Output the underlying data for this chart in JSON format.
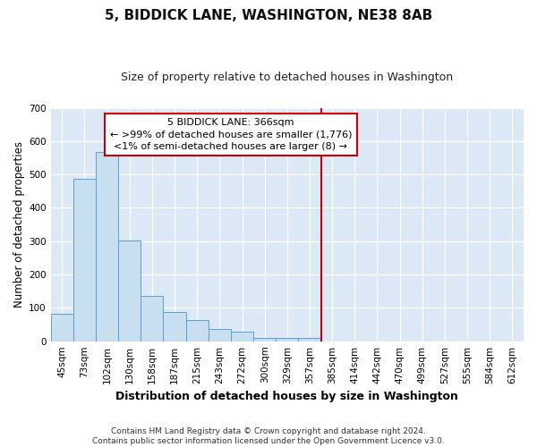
{
  "title": "5, BIDDICK LANE, WASHINGTON, NE38 8AB",
  "subtitle": "Size of property relative to detached houses in Washington",
  "xlabel": "Distribution of detached houses by size in Washington",
  "ylabel": "Number of detached properties",
  "footer_line1": "Contains HM Land Registry data © Crown copyright and database right 2024.",
  "footer_line2": "Contains public sector information licensed under the Open Government Licence v3.0.",
  "bar_labels": [
    "45sqm",
    "73sqm",
    "102sqm",
    "130sqm",
    "158sqm",
    "187sqm",
    "215sqm",
    "243sqm",
    "272sqm",
    "300sqm",
    "329sqm",
    "357sqm",
    "385sqm",
    "414sqm",
    "442sqm",
    "470sqm",
    "499sqm",
    "527sqm",
    "555sqm",
    "584sqm",
    "612sqm"
  ],
  "bar_values": [
    83,
    487,
    567,
    301,
    135,
    87,
    63,
    37,
    29,
    9,
    9,
    10,
    0,
    0,
    0,
    0,
    0,
    0,
    0,
    0,
    0
  ],
  "bar_color": "#c8dff0",
  "bar_edge_color": "#5a9fd4",
  "vline_x": 11.5,
  "vline_color": "#cc0000",
  "annotation_line1": "5 BIDDICK LANE: 366sqm",
  "annotation_line2": "← >99% of detached houses are smaller (1,776)",
  "annotation_line3": "<1% of semi-detached houses are larger (8) →",
  "annotation_box_color": "#cc0000",
  "ylim": [
    0,
    700
  ],
  "yticks": [
    0,
    100,
    200,
    300,
    400,
    500,
    600,
    700
  ],
  "background_color": "#dce8f5",
  "title_fontsize": 11,
  "subtitle_fontsize": 9,
  "annotation_fontsize": 8,
  "ylabel_fontsize": 8.5,
  "xlabel_fontsize": 9,
  "tick_fontsize": 7.5,
  "footer_fontsize": 6.5
}
